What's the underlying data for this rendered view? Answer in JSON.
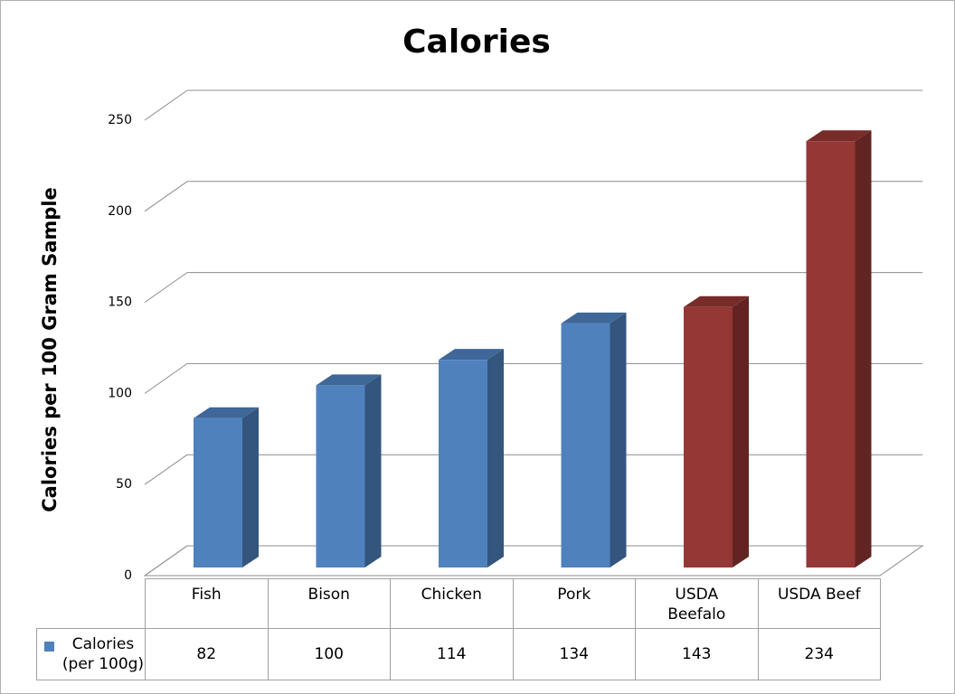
{
  "chart_data": {
    "type": "bar3d",
    "title": "Calories",
    "y_label": "Calories per 100 Gram Sample",
    "categories": [
      "Fish",
      "Bison",
      "Chicken",
      "Pork",
      "USDA Beefalo",
      "USDA Beef"
    ],
    "series": [
      {
        "name": "Calories (per 100g)",
        "color": "#4f81bd",
        "values": [
          82,
          100,
          114,
          134,
          143,
          234
        ],
        "colors": [
          "#4f81bd",
          "#4f81bd",
          "#4f81bd",
          "#4f81bd",
          "#953735",
          "#953735"
        ]
      }
    ],
    "ylim": [
      0,
      250
    ],
    "yticks": [
      0,
      50,
      100,
      150,
      200,
      250
    ],
    "grid": true,
    "data_table": true
  }
}
